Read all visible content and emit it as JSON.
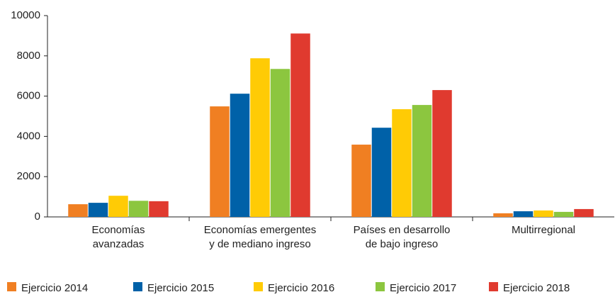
{
  "chart_data": {
    "type": "bar",
    "categories": [
      [
        "Economías",
        "avanzadas"
      ],
      [
        "Economías emergentes",
        "y de mediano ingreso"
      ],
      [
        "Países en desarrollo",
        "de bajo ingreso"
      ],
      [
        "Multirregional"
      ]
    ],
    "series": [
      {
        "name": "Ejercicio 2014",
        "color": "#f07f22",
        "values": [
          630,
          5490,
          3590,
          180
        ]
      },
      {
        "name": "Ejercicio 2015",
        "color": "#0061a8",
        "values": [
          700,
          6120,
          4430,
          280
        ]
      },
      {
        "name": "Ejercicio 2016",
        "color": "#ffcb05",
        "values": [
          1050,
          7880,
          5350,
          320
        ]
      },
      {
        "name": "Ejercicio 2017",
        "color": "#8cc63f",
        "values": [
          800,
          7350,
          5560,
          250
        ]
      },
      {
        "name": "Ejercicio 2018",
        "color": "#e03a2f",
        "values": [
          780,
          9110,
          6300,
          390
        ]
      }
    ],
    "ylim": [
      0,
      10000
    ],
    "yticks": [
      0,
      2000,
      4000,
      6000,
      8000,
      10000
    ],
    "grid": false
  }
}
